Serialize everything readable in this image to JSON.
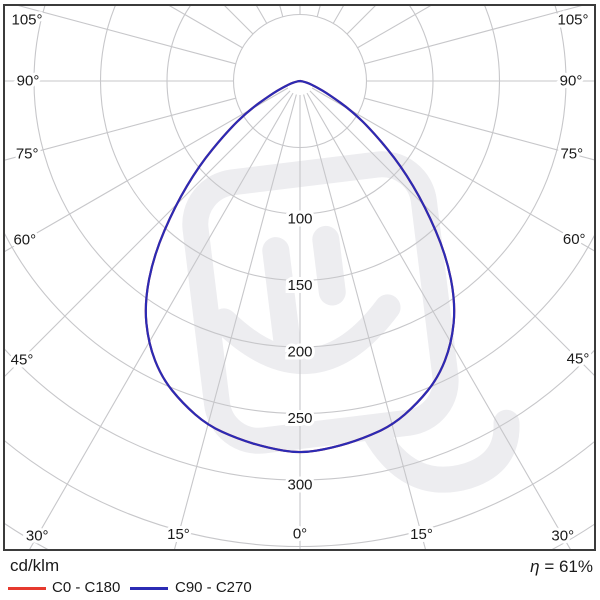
{
  "legend": {
    "unit_label": "cd/klm",
    "efficiency_label": "= 61%",
    "efficiency_symbol": "η",
    "series": [
      {
        "label": "C0 - C180",
        "color": "#e6392e"
      },
      {
        "label": "C90 - C270",
        "color": "#2b2bb4"
      }
    ]
  },
  "chart_data": {
    "type": "polar_photometric_curve",
    "unit": "cd/klm",
    "efficiency_percent": 61,
    "angle_ticks_deg": [
      0,
      15,
      30,
      45,
      60,
      75,
      90,
      105
    ],
    "degree_suffix": "°",
    "grid_angle_step_deg": 15,
    "radial_grid_values": [
      50,
      100,
      150,
      200,
      250,
      300,
      350,
      400
    ],
    "radial_tick_labels": [
      100,
      150,
      200,
      250,
      300
    ],
    "symmetric": true,
    "series": [
      {
        "name": "C0 - C180",
        "color": "#e6392e",
        "gamma_deg": [
          0,
          5,
          10,
          15,
          20,
          25,
          30,
          35,
          40,
          45,
          50,
          55,
          60,
          65,
          70,
          75,
          80,
          85,
          90
        ],
        "cd_per_klm": [
          280,
          277,
          273,
          268,
          258,
          246,
          228,
          204,
          171,
          133,
          99,
          68,
          45,
          24,
          13,
          7,
          3,
          1,
          0
        ]
      },
      {
        "name": "C90 - C270",
        "color": "#2b2bb4",
        "gamma_deg": [
          0,
          5,
          10,
          15,
          20,
          25,
          30,
          35,
          40,
          45,
          50,
          55,
          60,
          65,
          70,
          75,
          80,
          85,
          90
        ],
        "cd_per_klm": [
          280,
          277,
          273,
          268,
          258,
          246,
          228,
          204,
          171,
          133,
          99,
          68,
          45,
          24,
          13,
          7,
          3,
          1,
          0
        ]
      }
    ],
    "colors": {
      "grid": "#c7c7ca",
      "frame": "#3b3b3b",
      "text": "#1a1a1a",
      "halo": "#ffffff",
      "watermark": "#ededf0"
    }
  }
}
